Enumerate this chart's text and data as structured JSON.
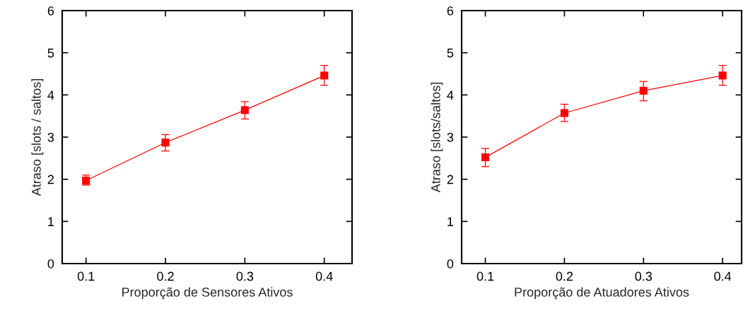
{
  "chart_data": [
    {
      "type": "line",
      "xlabel": "Proporção de Sensores Ativos",
      "ylabel": "Atraso [slots / saltos]",
      "x": [
        0.1,
        0.2,
        0.3,
        0.4
      ],
      "series": [
        {
          "color": "#ff0000",
          "values": [
            1.97,
            2.87,
            3.64,
            4.46
          ],
          "errors": [
            [
              1.86,
              2.1
            ],
            [
              2.67,
              3.06
            ],
            [
              3.43,
              3.84
            ],
            [
              4.23,
              4.7
            ]
          ]
        }
      ],
      "xlim": [
        0.07,
        0.435
      ],
      "xticks": [
        0.1,
        0.2,
        0.3,
        0.4
      ],
      "ylim": [
        0,
        6
      ],
      "yticks": [
        0,
        1,
        2,
        3,
        4,
        5,
        6
      ],
      "marker": "square",
      "line_style": "solid",
      "grid": false,
      "legend": false
    },
    {
      "type": "line",
      "xlabel": "Proporção de Atuadores Ativos",
      "ylabel": "Atraso [slots/saltos]",
      "x": [
        0.1,
        0.2,
        0.3,
        0.4
      ],
      "series": [
        {
          "color": "#ff0000",
          "values": [
            2.52,
            3.57,
            4.1,
            4.46
          ],
          "errors": [
            [
              2.3,
              2.73
            ],
            [
              3.37,
              3.78
            ],
            [
              3.86,
              4.32
            ],
            [
              4.23,
              4.7
            ]
          ]
        }
      ],
      "xlim": [
        0.07,
        0.424
      ],
      "xticks": [
        0.1,
        0.2,
        0.3,
        0.4
      ],
      "ylim": [
        0,
        6
      ],
      "yticks": [
        0,
        1,
        2,
        3,
        4,
        5,
        6
      ],
      "marker": "square",
      "line_style": "solid",
      "grid": false,
      "legend": false
    }
  ]
}
